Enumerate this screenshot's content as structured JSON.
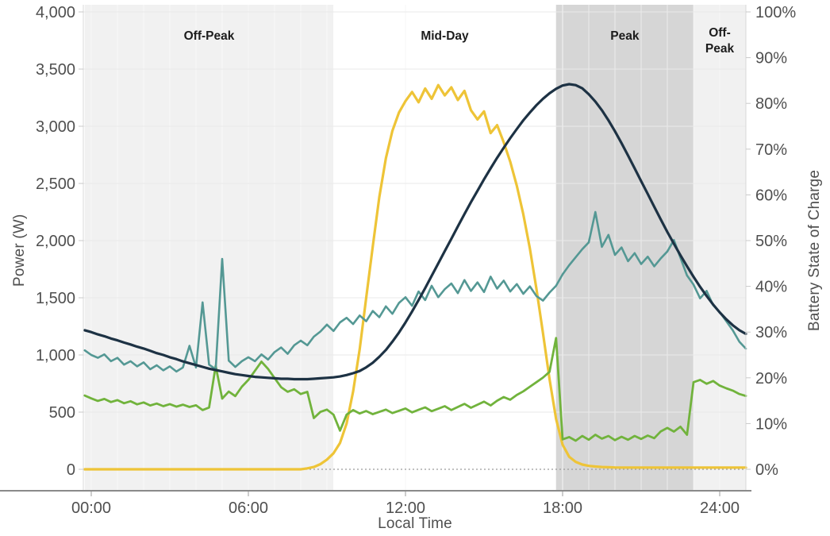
{
  "chart_data": {
    "type": "line",
    "title": "",
    "description": "Dual-axis daily profile: power flows (W, left axis) and battery state of charge (%, right axis) versus local time, with shaded time-of-use rate periods.",
    "x_axis": {
      "label": "Local Time",
      "unit": "hours",
      "range_hours": [
        -0.25,
        25
      ],
      "ticks": [
        {
          "hour": 0,
          "label": "00:00"
        },
        {
          "hour": 6,
          "label": "06:00"
        },
        {
          "hour": 12,
          "label": "12:00"
        },
        {
          "hour": 18,
          "label": "18:00"
        },
        {
          "hour": 24,
          "label": "24:00"
        }
      ],
      "minor_gridline_every_hours": 1
    },
    "y_left": {
      "label": "Power (W)",
      "range": [
        0,
        4000
      ],
      "ticks": [
        {
          "value": 0,
          "label": "0"
        },
        {
          "value": 500,
          "label": "500"
        },
        {
          "value": 1000,
          "label": "1,000"
        },
        {
          "value": 1500,
          "label": "1,500"
        },
        {
          "value": 2000,
          "label": "2,000"
        },
        {
          "value": 2500,
          "label": "2,500"
        },
        {
          "value": 3000,
          "label": "3,000"
        },
        {
          "value": 3500,
          "label": "3,500"
        },
        {
          "value": 4000,
          "label": "4,000"
        }
      ]
    },
    "y_right": {
      "label": "Battery State of Charge",
      "range": [
        0,
        100
      ],
      "ticks": [
        {
          "value": 0,
          "label": "0%"
        },
        {
          "value": 10,
          "label": "10%"
        },
        {
          "value": 20,
          "label": "20%"
        },
        {
          "value": 30,
          "label": "30%"
        },
        {
          "value": 40,
          "label": "40%"
        },
        {
          "value": 50,
          "label": "50%"
        },
        {
          "value": 60,
          "label": "60%"
        },
        {
          "value": 70,
          "label": "70%"
        },
        {
          "value": 80,
          "label": "80%"
        },
        {
          "value": 90,
          "label": "90%"
        },
        {
          "value": 100,
          "label": "100%"
        }
      ]
    },
    "zero_line_style": "dotted",
    "regions": [
      {
        "label": "Off-Peak",
        "label_lines": [
          "Off-Peak"
        ],
        "start_hour": -0.25,
        "end_hour": 9.25,
        "shade": "#f1f1f1"
      },
      {
        "label": "Mid-Day",
        "label_lines": [
          "Mid-Day"
        ],
        "start_hour": 9.25,
        "end_hour": 17.75,
        "shade": "#ffffff"
      },
      {
        "label": "Peak",
        "label_lines": [
          "Peak"
        ],
        "start_hour": 17.75,
        "end_hour": 23.0,
        "shade": "#d6d6d6"
      },
      {
        "label": "Off-Peak",
        "label_lines": [
          "Off-",
          "Peak"
        ],
        "start_hour": 23.0,
        "end_hour": 25.0,
        "shade": "#f1f1f1"
      }
    ],
    "x_hours": [
      -0.25,
      0,
      0.25,
      0.5,
      0.75,
      1,
      1.25,
      1.5,
      1.75,
      2,
      2.25,
      2.5,
      2.75,
      3,
      3.25,
      3.5,
      3.75,
      4,
      4.25,
      4.5,
      4.75,
      5,
      5.25,
      5.5,
      5.75,
      6,
      6.25,
      6.5,
      6.75,
      7,
      7.25,
      7.5,
      7.75,
      8,
      8.25,
      8.5,
      8.75,
      9,
      9.25,
      9.5,
      9.75,
      10,
      10.25,
      10.5,
      10.75,
      11,
      11.25,
      11.5,
      11.75,
      12,
      12.25,
      12.5,
      12.75,
      13,
      13.25,
      13.5,
      13.75,
      14,
      14.25,
      14.5,
      14.75,
      15,
      15.25,
      15.5,
      15.75,
      16,
      16.25,
      16.5,
      16.75,
      17,
      17.25,
      17.5,
      17.75,
      18,
      18.25,
      18.5,
      18.75,
      19,
      19.25,
      19.5,
      19.75,
      20,
      20.25,
      20.5,
      20.75,
      21,
      21.25,
      21.5,
      21.75,
      22,
      22.25,
      22.5,
      22.75,
      23,
      23.25,
      23.5,
      23.75,
      24,
      24.25,
      24.5,
      24.75,
      25
    ],
    "series": [
      {
        "name": "gold-line",
        "color": "#eec437",
        "axis": "power",
        "unit": "W",
        "width": 3.2,
        "values": [
          0,
          0,
          0,
          0,
          0,
          0,
          0,
          0,
          0,
          0,
          0,
          0,
          0,
          0,
          0,
          0,
          0,
          0,
          0,
          0,
          0,
          0,
          0,
          0,
          0,
          0,
          0,
          0,
          0,
          0,
          0,
          0,
          0,
          0,
          8,
          20,
          45,
          85,
          140,
          230,
          400,
          680,
          1050,
          1500,
          1950,
          2380,
          2720,
          2960,
          3120,
          3220,
          3300,
          3210,
          3330,
          3240,
          3360,
          3270,
          3340,
          3230,
          3310,
          3140,
          3060,
          3130,
          2940,
          3010,
          2860,
          2690,
          2480,
          2230,
          1930,
          1580,
          1190,
          790,
          440,
          215,
          110,
          65,
          42,
          30,
          24,
          20,
          18,
          16,
          15,
          15,
          15,
          15,
          15,
          15,
          15,
          15,
          15,
          15,
          15,
          15,
          15,
          15,
          15,
          15,
          15,
          15,
          15,
          15
        ]
      },
      {
        "name": "green-line",
        "color": "#71b33c",
        "axis": "power",
        "unit": "W",
        "width": 2.8,
        "values": [
          645,
          620,
          598,
          615,
          588,
          605,
          578,
          595,
          568,
          585,
          558,
          575,
          552,
          570,
          548,
          565,
          545,
          560,
          518,
          540,
          905,
          618,
          680,
          640,
          722,
          782,
          862,
          942,
          878,
          798,
          718,
          678,
          700,
          658,
          678,
          448,
          502,
          522,
          478,
          338,
          478,
          518,
          488,
          510,
          482,
          502,
          522,
          492,
          512,
          532,
          498,
          520,
          542,
          508,
          530,
          552,
          518,
          545,
          572,
          538,
          565,
          592,
          558,
          600,
          632,
          608,
          650,
          682,
          722,
          762,
          802,
          852,
          1148,
          262,
          282,
          250,
          292,
          258,
          302,
          268,
          292,
          255,
          285,
          258,
          292,
          265,
          295,
          272,
          332,
          362,
          330,
          372,
          302,
          762,
          782,
          748,
          772,
          732,
          708,
          688,
          658,
          642
        ]
      },
      {
        "name": "teal-line",
        "color": "#549894",
        "axis": "power",
        "unit": "W",
        "width": 2.6,
        "values": [
          1040,
          1000,
          975,
          1005,
          945,
          975,
          915,
          945,
          900,
          935,
          875,
          910,
          865,
          900,
          855,
          890,
          1080,
          890,
          1460,
          915,
          875,
          1840,
          950,
          895,
          945,
          980,
          945,
          1005,
          960,
          1025,
          1065,
          1010,
          1085,
          1125,
          1085,
          1160,
          1205,
          1265,
          1210,
          1285,
          1325,
          1270,
          1345,
          1295,
          1385,
          1330,
          1425,
          1360,
          1455,
          1505,
          1430,
          1555,
          1480,
          1605,
          1505,
          1575,
          1625,
          1540,
          1655,
          1560,
          1635,
          1550,
          1685,
          1580,
          1650,
          1555,
          1620,
          1535,
          1600,
          1515,
          1475,
          1545,
          1605,
          1705,
          1785,
          1855,
          1925,
          1985,
          2250,
          1945,
          2050,
          1875,
          1940,
          1820,
          1890,
          1795,
          1860,
          1775,
          1845,
          1905,
          2005,
          1850,
          1695,
          1615,
          1495,
          1560,
          1435,
          1375,
          1295,
          1215,
          1115,
          1055
        ]
      },
      {
        "name": "navy-line",
        "color": "#1d3244",
        "axis": "soc",
        "unit": "%",
        "width": 3.2,
        "values": [
          30.4,
          30,
          29.5,
          29.1,
          28.6,
          28.2,
          27.7,
          27.3,
          26.8,
          26.4,
          25.9,
          25.4,
          25,
          24.5,
          24.1,
          23.6,
          23.2,
          22.8,
          22.4,
          22,
          21.7,
          21.4,
          21.1,
          20.8,
          20.6,
          20.4,
          20.2,
          20.1,
          20,
          19.9,
          19.8,
          19.8,
          19.7,
          19.7,
          19.7,
          19.8,
          19.9,
          20,
          20.1,
          20.3,
          20.6,
          21,
          21.5,
          22.3,
          23.3,
          24.6,
          26.1,
          27.9,
          29.9,
          32.1,
          34.5,
          37,
          39.6,
          42.3,
          45,
          47.7,
          50.4,
          53.1,
          55.8,
          58.4,
          60.9,
          63.4,
          65.8,
          68.1,
          70.3,
          72.4,
          74.4,
          76.3,
          78,
          79.6,
          81,
          82.2,
          83.2,
          83.9,
          84.2,
          84,
          83.3,
          82,
          80.4,
          78.5,
          76.3,
          73.9,
          71.3,
          68.6,
          65.8,
          63,
          60.2,
          57.4,
          54.6,
          51.9,
          49.3,
          46.8,
          44.4,
          42.1,
          39.9,
          37.9,
          36,
          34.3,
          32.8,
          31.5,
          30.4,
          29.6
        ]
      }
    ],
    "colors": {
      "off_peak_shade": "#f1f1f1",
      "peak_shade": "#d6d6d6",
      "axis_text": "#4f4f4f",
      "region_label_text": "#1c1c1c",
      "x_axis_line": "#8a8a8a",
      "side_axis_line": "#d8d8d8",
      "h_gridline": "#e9e9e9",
      "major_v_gridline": "#ececec",
      "zero_line": "#9b9b9b"
    }
  }
}
